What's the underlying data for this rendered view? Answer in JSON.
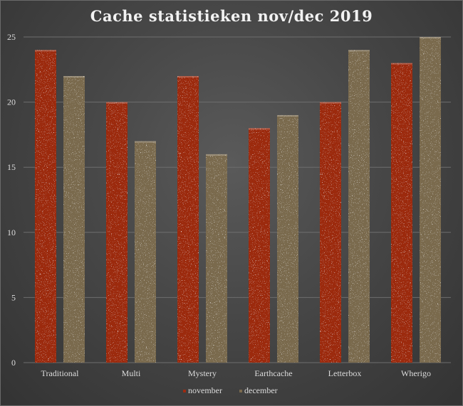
{
  "chart_data": {
    "type": "bar",
    "title": "Cache statistieken nov/dec 2019",
    "xlabel": "",
    "ylabel": "",
    "categories": [
      "Traditional",
      "Multi",
      "Mystery",
      "Earthcache",
      "Letterbox",
      "Wherigo"
    ],
    "series": [
      {
        "name": "november",
        "values": [
          24,
          20,
          22,
          18,
          20,
          23
        ],
        "color": "#9c2a10"
      },
      {
        "name": "december",
        "values": [
          22,
          17,
          16,
          19,
          24,
          25
        ],
        "color": "#7a6a4e"
      }
    ],
    "ylim": [
      0,
      25
    ],
    "yticks": [
      0,
      5,
      10,
      15,
      20,
      25
    ],
    "grid": true,
    "legend": "bottom"
  }
}
